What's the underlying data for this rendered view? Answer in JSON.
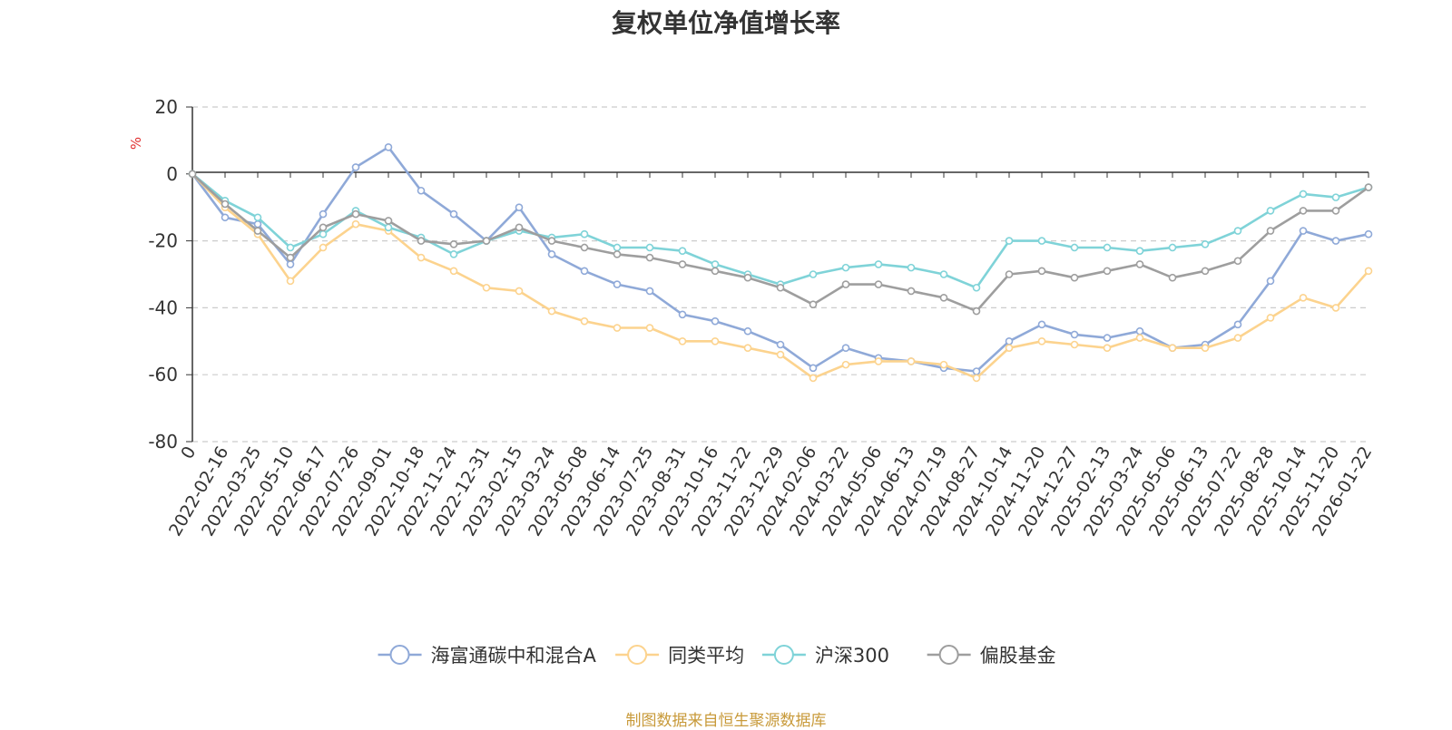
{
  "chart_data": {
    "type": "line",
    "title": "复权单位净值增长率",
    "ylabel": "%",
    "xlabel": "",
    "ylim": [
      -80,
      20
    ],
    "yticks": [
      20,
      0,
      -20,
      -40,
      -60,
      -80
    ],
    "grid": true,
    "legend_position": "bottom-center",
    "categories": [
      "0",
      "2022-02-16",
      "2022-03-25",
      "2022-05-10",
      "2022-06-17",
      "2022-07-26",
      "2022-09-01",
      "2022-10-18",
      "2022-11-24",
      "2022-12-31",
      "2023-02-15",
      "2023-03-24",
      "2023-05-08",
      "2023-06-14",
      "2023-07-25",
      "2023-08-31",
      "2023-10-16",
      "2023-11-22",
      "2023-12-29",
      "2024-02-06",
      "2024-03-22",
      "2024-05-06",
      "2024-06-13",
      "2024-07-19",
      "2024-08-27",
      "2024-10-14",
      "2024-11-20",
      "2024-12-27",
      "2025-02-13",
      "2025-03-24",
      "2025-05-06",
      "2025-06-13",
      "2025-07-22",
      "2025-08-28",
      "2025-10-14",
      "2025-11-20",
      "2026-01-22"
    ],
    "series": [
      {
        "name": "海富通碳中和混合A",
        "color": "#8fa9d8",
        "values": [
          0,
          -13,
          -15,
          -27,
          -12,
          2,
          8,
          -5,
          -12,
          -20,
          -10,
          -24,
          -29,
          -33,
          -35,
          -42,
          -44,
          -47,
          -51,
          -58,
          -52,
          -55,
          -56,
          -58,
          -59,
          -50,
          -45,
          -48,
          -49,
          -47,
          -52,
          -51,
          -45,
          -32,
          -17,
          -20,
          -18
        ]
      },
      {
        "name": "同类平均",
        "color": "#fcd38e",
        "values": [
          0,
          -10,
          -18,
          -32,
          -22,
          -15,
          -17,
          -25,
          -29,
          -34,
          -35,
          -41,
          -44,
          -46,
          -46,
          -50,
          -50,
          -52,
          -54,
          -61,
          -57,
          -56,
          -56,
          -57,
          -61,
          -52,
          -50,
          -51,
          -52,
          -49,
          -52,
          -52,
          -49,
          -43,
          -37,
          -40,
          -29
        ]
      },
      {
        "name": "沪深300",
        "color": "#7fd3d8",
        "values": [
          0,
          -8,
          -13,
          -22,
          -18,
          -11,
          -16,
          -19,
          -24,
          -20,
          -17,
          -19,
          -18,
          -22,
          -22,
          -23,
          -27,
          -30,
          -33,
          -30,
          -28,
          -27,
          -28,
          -30,
          -34,
          -20,
          -20,
          -22,
          -22,
          -23,
          -22,
          -21,
          -17,
          -11,
          -6,
          -7,
          -4
        ]
      },
      {
        "name": "偏股基金",
        "color": "#9e9e9e",
        "values": [
          0,
          -9,
          -17,
          -25,
          -16,
          -12,
          -14,
          -20,
          -21,
          -20,
          -16,
          -20,
          -22,
          -24,
          -25,
          -27,
          -29,
          -31,
          -34,
          -39,
          -33,
          -33,
          -35,
          -37,
          -41,
          -30,
          -29,
          -31,
          -29,
          -27,
          -31,
          -29,
          -26,
          -17,
          -11,
          -11,
          -4
        ]
      }
    ]
  },
  "footer": {
    "source": "制图数据来自恒生聚源数据库"
  }
}
